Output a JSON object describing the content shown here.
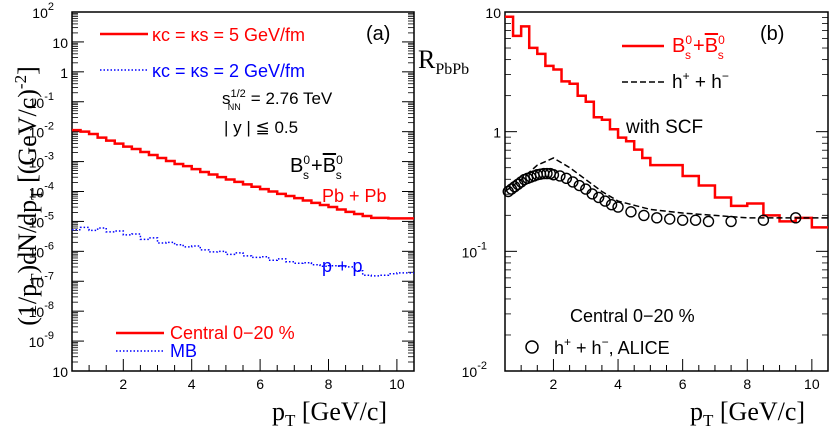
{
  "chart_data": [
    {
      "panel": "(a)",
      "type": "line",
      "xlabel": "p_T [GeV/c]",
      "ylabel": "(1/p_T)dN/dp_T [(GeV/c)^-2]",
      "xlim": [
        0.5,
        10.5
      ],
      "ylim_log10": [
        -10,
        2
      ],
      "yscale": "log",
      "x_ticks": [
        "2",
        "4",
        "6",
        "8",
        "10"
      ],
      "y_ticks": [
        {
          "base": "10",
          "exp": "2"
        },
        {
          "base": "10",
          "exp": ""
        },
        {
          "base": "1",
          "exp": ""
        },
        {
          "base": "10",
          "exp": "-1"
        },
        {
          "base": "10",
          "exp": "-2"
        },
        {
          "base": "10",
          "exp": "-3"
        },
        {
          "base": "10",
          "exp": "-4"
        },
        {
          "base": "10",
          "exp": "-5"
        },
        {
          "base": "10",
          "exp": "-6"
        },
        {
          "base": "10",
          "exp": "-7"
        },
        {
          "base": "10",
          "exp": "-8"
        },
        {
          "base": "10",
          "exp": "-9"
        },
        {
          "base": "10",
          "exp": ""
        }
      ],
      "legend_model": [
        {
          "label": "κc = κs = 5 GeV/fm",
          "color": "#ff0000",
          "style": "solid"
        },
        {
          "label": "κc = κs = 2 GeV/fm",
          "color": "#0000ff",
          "style": "dotted"
        }
      ],
      "legend_centrality": [
        {
          "label": "Central 0−20 %",
          "color": "#ff0000",
          "style": "solid"
        },
        {
          "label": "MB",
          "color": "#0000ff",
          "style": "dotted"
        }
      ],
      "info": {
        "energy_base": "s",
        "energy_sup": "1/2",
        "energy_sub": "NN",
        "energy_value": "= 2.76 TeV",
        "rapidity": "| y | ≦ 0.5",
        "particle": "B⁰s+B̄⁰s"
      },
      "series": [
        {
          "name": "Pb + Pb",
          "color": "#ff0000",
          "style": "solid",
          "x": [
            0.5,
            0.75,
            1.0,
            1.25,
            1.5,
            1.75,
            2.0,
            2.25,
            2.5,
            2.75,
            3.0,
            3.25,
            3.5,
            3.75,
            4.0,
            4.25,
            4.5,
            4.75,
            5.0,
            5.25,
            5.5,
            5.75,
            6.0,
            6.25,
            6.5,
            6.75,
            7.0,
            7.25,
            7.5,
            7.75,
            8.0,
            8.25,
            8.5,
            8.75,
            9.0,
            9.25,
            9.5,
            9.75,
            10.0,
            10.5
          ],
          "y_log10": [
            -1.95,
            -2.0,
            -2.08,
            -2.2,
            -2.3,
            -2.4,
            -2.5,
            -2.58,
            -2.68,
            -2.78,
            -2.88,
            -2.98,
            -3.08,
            -3.15,
            -3.25,
            -3.35,
            -3.43,
            -3.52,
            -3.6,
            -3.68,
            -3.76,
            -3.84,
            -3.92,
            -4.0,
            -4.08,
            -4.15,
            -4.22,
            -4.3,
            -4.38,
            -4.45,
            -4.52,
            -4.6,
            -4.68,
            -4.75,
            -4.82,
            -4.88,
            -4.88,
            -4.9,
            -4.9,
            -4.9
          ]
        },
        {
          "name": "p + p",
          "color": "#0000ff",
          "style": "dotted",
          "x": [
            0.5,
            0.75,
            1.0,
            1.25,
            1.5,
            1.75,
            2.0,
            2.25,
            2.5,
            2.75,
            3.0,
            3.25,
            3.5,
            3.75,
            4.0,
            4.25,
            4.5,
            4.75,
            5.0,
            5.25,
            5.5,
            5.75,
            6.0,
            6.25,
            6.5,
            6.75,
            7.0,
            7.25,
            7.5,
            7.75,
            8.0,
            8.25,
            8.5,
            8.75,
            9.0,
            9.25,
            9.5,
            9.75,
            10.0,
            10.5
          ],
          "y_log10": [
            -5.28,
            -5.2,
            -5.3,
            -5.22,
            -5.35,
            -5.32,
            -5.45,
            -5.42,
            -5.6,
            -5.55,
            -5.72,
            -5.7,
            -5.78,
            -5.85,
            -5.82,
            -5.95,
            -6.02,
            -6.0,
            -6.1,
            -6.05,
            -6.15,
            -6.2,
            -6.18,
            -6.3,
            -6.25,
            -6.35,
            -6.4,
            -6.38,
            -6.45,
            -6.5,
            -6.48,
            -6.5,
            -6.52,
            -6.65,
            -6.8,
            -6.82,
            -6.8,
            -6.75,
            -6.72,
            -6.72
          ]
        }
      ]
    },
    {
      "panel": "(b)",
      "type": "line",
      "xlabel": "p_T [GeV/c]",
      "ylabel": "R_PbPb",
      "xlim": [
        0.5,
        10.5
      ],
      "ylim_log10": [
        -2,
        1
      ],
      "yscale": "log",
      "x_ticks": [
        "2",
        "4",
        "6",
        "8",
        "10"
      ],
      "y_ticks": [
        {
          "base": "10",
          "exp": ""
        },
        {
          "base": "1",
          "exp": ""
        },
        {
          "base": "10",
          "exp": "-1"
        },
        {
          "base": "10",
          "exp": "-2"
        }
      ],
      "annotation": "with SCF",
      "centrality": "Central 0−20 %",
      "legend": [
        {
          "label": "B⁰s+B̄⁰s",
          "color": "#ff0000",
          "style": "solid"
        },
        {
          "label": "h⁺ + h⁻",
          "color": "#000000",
          "style": "dashed"
        }
      ],
      "data_legend": "h⁺ + h⁻, ALICE",
      "series": [
        {
          "name": "B⁰s+B̄⁰s",
          "color": "#ff0000",
          "style": "solid",
          "x": [
            0.5,
            0.75,
            1.0,
            1.25,
            1.5,
            1.75,
            2.0,
            2.25,
            2.5,
            2.75,
            3.0,
            3.25,
            3.5,
            3.75,
            4.0,
            4.25,
            4.5,
            4.75,
            5.0,
            5.5,
            6.0,
            6.5,
            7.0,
            7.5,
            8.0,
            8.5,
            9.0,
            9.5,
            10.0,
            10.5
          ],
          "y_log10": [
            0.96,
            0.8,
            0.88,
            0.7,
            0.65,
            0.55,
            0.52,
            0.42,
            0.4,
            0.3,
            0.25,
            0.12,
            0.1,
            0.02,
            -0.05,
            -0.08,
            -0.15,
            -0.22,
            -0.28,
            -0.28,
            -0.37,
            -0.45,
            -0.55,
            -0.62,
            -0.6,
            -0.7,
            -0.75,
            -0.72,
            -0.8,
            -0.8
          ]
        },
        {
          "name": "h⁺ + h⁻",
          "color": "#000000",
          "style": "dashed",
          "x": [
            0.5,
            1.0,
            1.5,
            2.0,
            2.5,
            3.0,
            3.5,
            4.0,
            5.0,
            6.0,
            7.0,
            8.0,
            9.0,
            10.0,
            10.5
          ],
          "y_log10": [
            -0.5,
            -0.4,
            -0.28,
            -0.22,
            -0.3,
            -0.4,
            -0.5,
            -0.58,
            -0.65,
            -0.68,
            -0.7,
            -0.72,
            -0.72,
            -0.72,
            -0.72
          ]
        },
        {
          "name": "h⁺ + h⁻, ALICE",
          "color": "#000000",
          "style": "markers",
          "x": [
            0.6,
            0.7,
            0.8,
            0.9,
            1.0,
            1.1,
            1.2,
            1.3,
            1.4,
            1.5,
            1.6,
            1.7,
            1.8,
            1.9,
            2.0,
            2.2,
            2.4,
            2.6,
            2.8,
            3.0,
            3.2,
            3.4,
            3.6,
            3.8,
            4.0,
            4.4,
            4.8,
            5.2,
            5.6,
            6.0,
            6.4,
            6.8,
            7.5,
            8.5,
            9.5
          ],
          "y_log10": [
            -0.5,
            -0.48,
            -0.46,
            -0.44,
            -0.42,
            -0.4,
            -0.39,
            -0.38,
            -0.37,
            -0.36,
            -0.355,
            -0.35,
            -0.35,
            -0.35,
            -0.36,
            -0.37,
            -0.39,
            -0.42,
            -0.45,
            -0.48,
            -0.52,
            -0.55,
            -0.58,
            -0.61,
            -0.63,
            -0.67,
            -0.7,
            -0.72,
            -0.73,
            -0.74,
            -0.74,
            -0.75,
            -0.75,
            -0.74,
            -0.72
          ]
        }
      ]
    }
  ]
}
